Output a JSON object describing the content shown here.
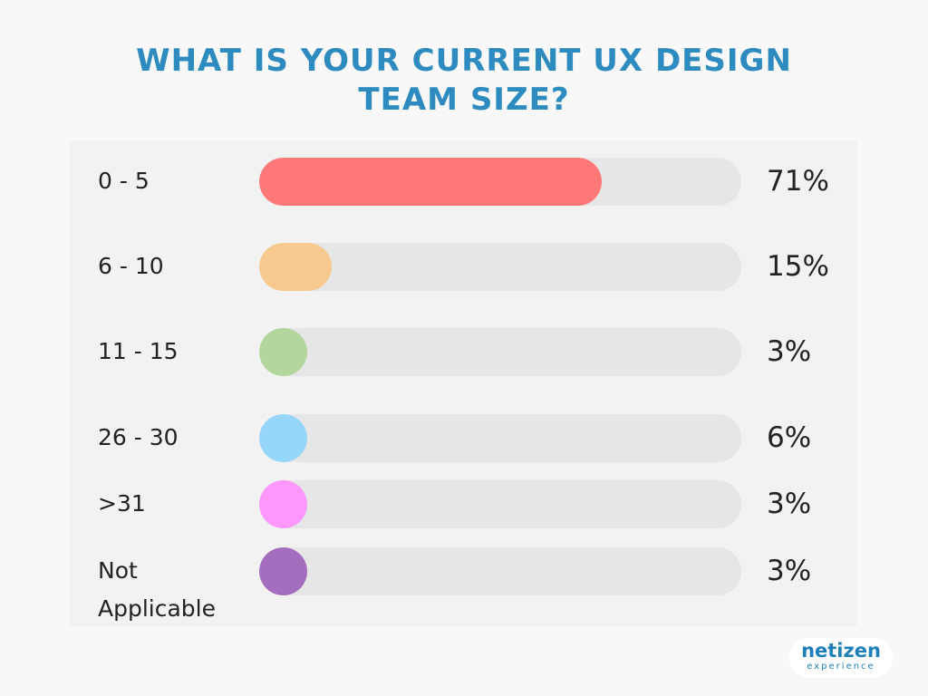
{
  "chart_data": {
    "type": "bar",
    "title_lines": [
      "WHAT IS YOUR CURRENT UX DESIGN",
      "TEAM SIZE?"
    ],
    "categories": [
      "0 - 5",
      "6 - 10",
      "11 - 15",
      "26 - 30",
      ">31",
      "Not Applicable"
    ],
    "values": [
      71,
      15,
      3,
      6,
      3,
      3
    ],
    "value_labels": [
      "71%",
      "15%",
      "3%",
      "6%",
      "3%",
      "3%"
    ],
    "colors": [
      "#ff7878",
      "#f8c98f",
      "#b2d69c",
      "#97d6fb",
      "#fd97fb",
      "#a56dbd"
    ],
    "ylim": [
      0,
      100
    ],
    "orientation": "horizontal",
    "grid": false,
    "legend": "none"
  },
  "logo": {
    "word": "netizen",
    "sub": "experience"
  }
}
